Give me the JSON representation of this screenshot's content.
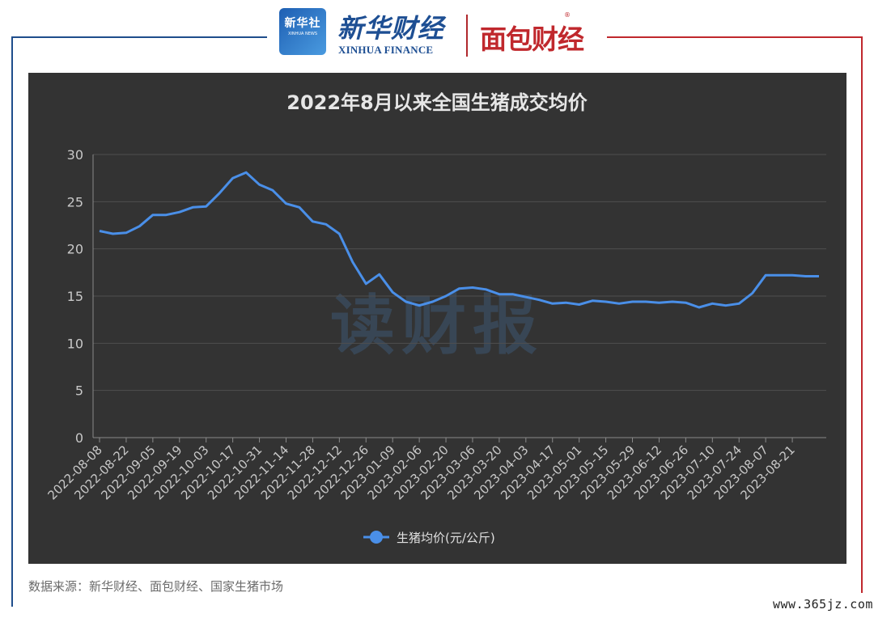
{
  "header": {
    "logo_box_main": "新华社",
    "logo_box_sub": "XINHUA NEWS",
    "brand_name": "新华财经",
    "brand_sub": "XINHUA FINANCE",
    "partner_name": "面包财经",
    "partner_mark": "®"
  },
  "chart_data": {
    "type": "line",
    "title": "2022年8月以来全国生猪成交均价",
    "xlabel": "",
    "ylabel": "",
    "ylim": [
      0,
      30
    ],
    "yticks": [
      "0",
      "5",
      "10",
      "15",
      "20",
      "25",
      "30"
    ],
    "grid": true,
    "legend": "bottom-center",
    "background": "#333333",
    "line_color": "#4a8fe8",
    "x_tick_labels": [
      "2022-08-08",
      "2022-08-22",
      "2022-09-05",
      "2022-09-19",
      "2022-10-03",
      "2022-10-17",
      "2022-10-31",
      "2022-11-14",
      "2022-11-28",
      "2022-12-12",
      "2022-12-26",
      "2023-01-09",
      "2023-02-06",
      "2023-02-20",
      "2023-03-06",
      "2023-03-20",
      "2023-04-03",
      "2023-04-17",
      "2023-05-01",
      "2023-05-15",
      "2023-05-29",
      "2023-06-12",
      "2023-06-26",
      "2023-07-10",
      "2023-07-24",
      "2023-08-07",
      "2023-08-21"
    ],
    "series": [
      {
        "name": "生猪均价(元/公斤)",
        "values": [
          21.9,
          21.6,
          21.7,
          22.4,
          23.6,
          23.6,
          23.9,
          24.4,
          24.5,
          25.9,
          27.5,
          28.1,
          26.8,
          26.2,
          24.8,
          24.4,
          22.9,
          22.6,
          21.6,
          18.6,
          16.3,
          17.3,
          15.4,
          14.4,
          14.0,
          14.4,
          15.0,
          15.8,
          15.9,
          15.7,
          15.2,
          15.2,
          14.9,
          14.6,
          14.2,
          14.3,
          14.1,
          14.5,
          14.4,
          14.2,
          14.4,
          14.4,
          14.3,
          14.4,
          14.3,
          13.8,
          14.2,
          14.0,
          14.2,
          15.3,
          17.2,
          17.2,
          17.2,
          17.1,
          17.1
        ]
      }
    ]
  },
  "watermark_text": "读财报",
  "source_text": "数据来源：新华财经、面包财经、国家生猪市场",
  "site_watermark": "www.365jz.com"
}
